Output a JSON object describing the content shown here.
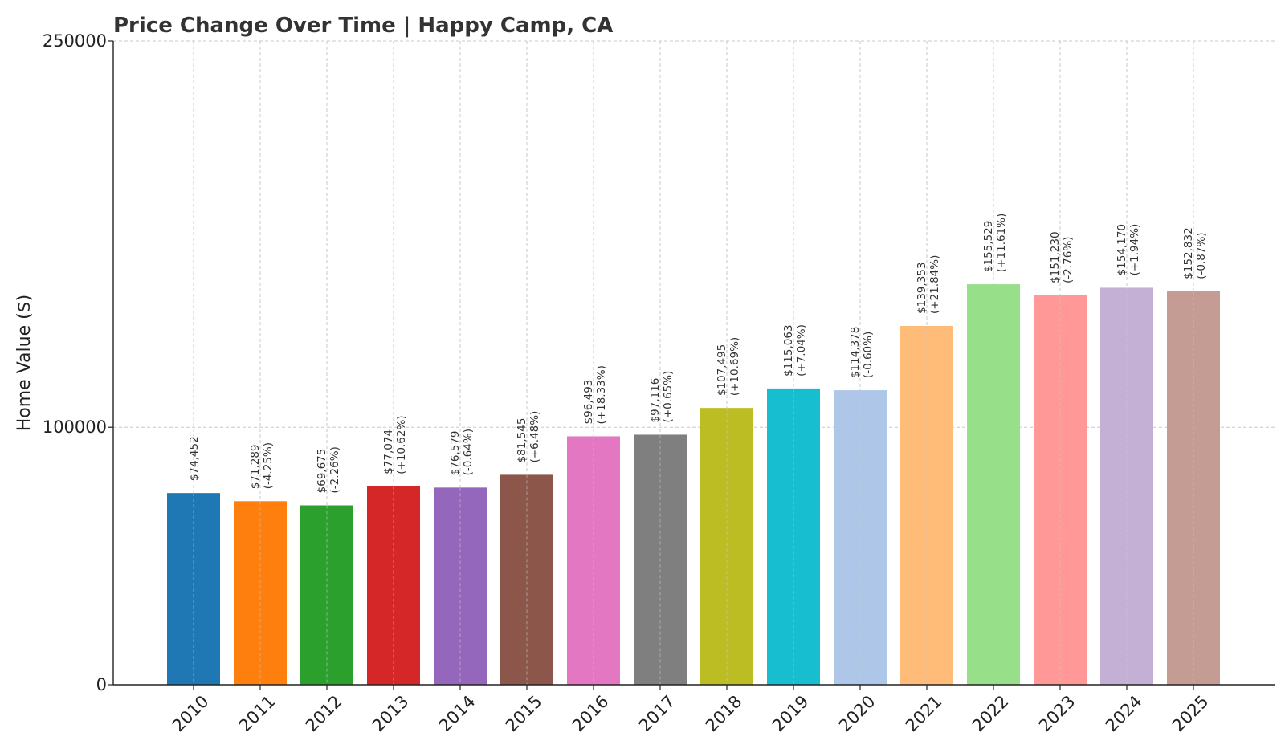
{
  "chart_data": {
    "type": "bar",
    "title": "Price Change Over Time | Happy Camp, CA",
    "xlabel": "",
    "ylabel": "Home Value ($)",
    "ylim": [
      0,
      250000
    ],
    "yticks": [
      "0",
      "100000",
      "250000"
    ],
    "ytick_values": [
      0,
      100000,
      250000
    ],
    "grid": true,
    "categories": [
      "2010",
      "2011",
      "2012",
      "2013",
      "2014",
      "2015",
      "2016",
      "2017",
      "2018",
      "2019",
      "2020",
      "2021",
      "2022",
      "2023",
      "2024",
      "2025"
    ],
    "values": [
      74452,
      71289,
      69675,
      77074,
      76579,
      81545,
      96493,
      97116,
      107495,
      115063,
      114378,
      139353,
      155529,
      151230,
      154170,
      152832
    ],
    "value_labels": [
      "$74,452",
      "$71,289",
      "$69,675",
      "$77,074",
      "$76,579",
      "$81,545",
      "$96,493",
      "$97,116",
      "$107,495",
      "$115,063",
      "$114,378",
      "$139,353",
      "$155,529",
      "$151,230",
      "$154,170",
      "$152,832"
    ],
    "change_labels": [
      "",
      "(-4.25%)",
      "(-2.26%)",
      "(+10.62%)",
      "(-0.64%)",
      "(+6.48%)",
      "(+18.33%)",
      "(+0.65%)",
      "(+10.69%)",
      "(+7.04%)",
      "(-0.60%)",
      "(+21.84%)",
      "(+11.61%)",
      "(-2.76%)",
      "(+1.94%)",
      "(-0.87%)"
    ],
    "colors": [
      "#1f77b4",
      "#ff7f0e",
      "#2ca02c",
      "#d62728",
      "#9467bd",
      "#8c564b",
      "#e377c2",
      "#7f7f7f",
      "#bcbd22",
      "#17becf",
      "#aec7e8",
      "#ffbb78",
      "#98df8a",
      "#ff9896",
      "#c5b0d5",
      "#c49c94"
    ]
  }
}
